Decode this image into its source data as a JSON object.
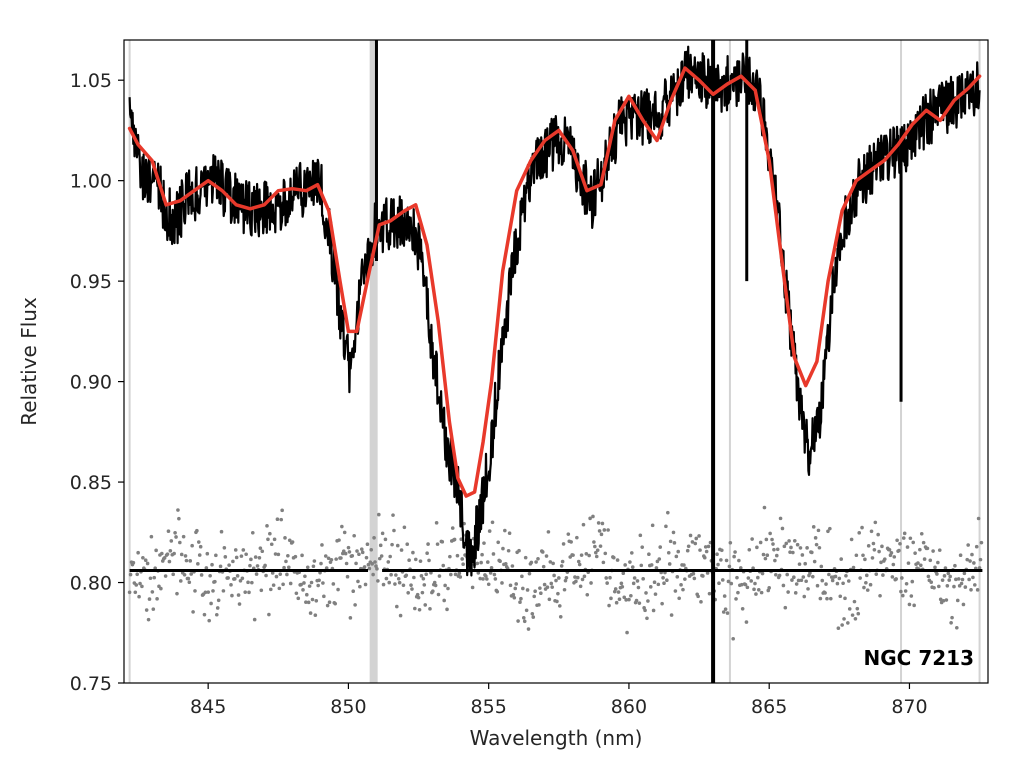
{
  "chart_data": {
    "type": "line",
    "title": "",
    "xlabel": "Wavelength (nm)",
    "ylabel": "Relative Flux",
    "xlim": [
      842.0,
      872.8
    ],
    "ylim": [
      0.75,
      1.07
    ],
    "xticks": [
      845,
      850,
      855,
      860,
      865,
      870
    ],
    "yticks": [
      0.75,
      0.8,
      0.85,
      0.9,
      0.95,
      1.0,
      1.05
    ],
    "xtick_labels": [
      "845",
      "850",
      "855",
      "860",
      "865",
      "870"
    ],
    "ytick_labels": [
      "0.75",
      "0.80",
      "0.85",
      "0.90",
      "0.95",
      "1.00",
      "1.05"
    ],
    "annotation": "NGC 7213",
    "grid": false,
    "legend": "none",
    "colors": {
      "observed": "#000000",
      "model": "#e8392b",
      "residuals": "#808080",
      "masked": "#d3d3d3",
      "axes": "#000000"
    },
    "masked_regions": [
      {
        "x": 842.2,
        "weight": "thin"
      },
      {
        "x": 850.9,
        "weight": "thick"
      },
      {
        "x": 863.6,
        "weight": "thin"
      },
      {
        "x": 869.7,
        "weight": "thin"
      },
      {
        "x": 872.5,
        "weight": "thin"
      }
    ],
    "series": [
      {
        "kind": "observed",
        "x": [
          842.2,
          842.4,
          842.6,
          842.9,
          843.2,
          843.5,
          843.8,
          844.2,
          844.6,
          845.0,
          845.4,
          845.8,
          846.2,
          846.6,
          847.0,
          847.4,
          847.8,
          848.2,
          848.6,
          849.0,
          849.3,
          849.6,
          849.9,
          850.1,
          850.4,
          850.7,
          851.0,
          851.4,
          851.8,
          852.2,
          852.6,
          852.9,
          853.2,
          853.5,
          853.8,
          854.0,
          854.2,
          854.4,
          854.6,
          854.9,
          855.2,
          855.5,
          855.9,
          856.3,
          856.8,
          857.3,
          857.8,
          858.3,
          858.7,
          859.2,
          859.7,
          860.2,
          860.7,
          861.2,
          861.7,
          862.2,
          862.7,
          863.2,
          863.7,
          864.2,
          864.7,
          865.1,
          865.5,
          865.8,
          866.1,
          866.4,
          866.7,
          867.0,
          867.3,
          867.7,
          868.1,
          868.6,
          869.1,
          869.6,
          870.1,
          870.6,
          871.1,
          871.6,
          872.0,
          872.5
        ],
        "y": [
          1.035,
          1.02,
          1.005,
          1.0,
          0.998,
          0.985,
          0.98,
          0.99,
          0.995,
          1.0,
          0.998,
          0.992,
          0.988,
          0.985,
          0.986,
          0.988,
          0.99,
          0.996,
          0.995,
          0.998,
          0.975,
          0.945,
          0.915,
          0.905,
          0.94,
          0.965,
          0.978,
          0.978,
          0.978,
          0.983,
          0.96,
          0.928,
          0.895,
          0.87,
          0.855,
          0.838,
          0.818,
          0.813,
          0.828,
          0.85,
          0.882,
          0.92,
          0.96,
          0.992,
          1.01,
          1.018,
          1.02,
          1.0,
          0.99,
          1.01,
          1.028,
          1.03,
          1.032,
          1.035,
          1.045,
          1.055,
          1.05,
          1.045,
          1.05,
          1.052,
          1.04,
          1.005,
          0.96,
          0.92,
          0.89,
          0.865,
          0.875,
          0.905,
          0.95,
          0.98,
          0.995,
          1.005,
          1.012,
          1.015,
          1.02,
          1.03,
          1.035,
          1.04,
          1.042,
          1.048
        ]
      },
      {
        "kind": "model",
        "x": [
          842.2,
          842.5,
          843.0,
          843.5,
          844.0,
          844.5,
          845.0,
          845.5,
          846.0,
          846.5,
          847.0,
          847.5,
          848.0,
          848.5,
          848.9,
          849.3,
          849.7,
          850.0,
          850.3,
          850.7,
          851.1,
          851.5,
          852.0,
          852.4,
          852.8,
          853.2,
          853.6,
          853.9,
          854.2,
          854.5,
          854.8,
          855.1,
          855.5,
          856.0,
          856.5,
          857.0,
          857.5,
          858.0,
          858.5,
          859.0,
          859.5,
          860.0,
          860.5,
          861.0,
          861.5,
          862.0,
          862.5,
          863.0,
          863.5,
          864.0,
          864.5,
          865.0,
          865.5,
          865.9,
          866.3,
          866.7,
          867.1,
          867.6,
          868.1,
          868.6,
          869.1,
          869.6,
          870.1,
          870.6,
          871.1,
          871.6,
          872.1,
          872.5
        ],
        "y": [
          1.026,
          1.018,
          1.01,
          0.988,
          0.99,
          0.995,
          1.0,
          0.995,
          0.988,
          0.986,
          0.988,
          0.995,
          0.996,
          0.995,
          0.998,
          0.985,
          0.95,
          0.925,
          0.925,
          0.952,
          0.978,
          0.98,
          0.985,
          0.988,
          0.968,
          0.93,
          0.88,
          0.852,
          0.843,
          0.845,
          0.87,
          0.9,
          0.955,
          0.995,
          1.01,
          1.02,
          1.025,
          1.015,
          0.995,
          0.998,
          1.03,
          1.042,
          1.03,
          1.02,
          1.04,
          1.056,
          1.05,
          1.043,
          1.048,
          1.052,
          1.045,
          1.01,
          0.955,
          0.912,
          0.898,
          0.91,
          0.95,
          0.985,
          1.0,
          1.005,
          1.01,
          1.018,
          1.028,
          1.035,
          1.03,
          1.04,
          1.046,
          1.052
        ]
      }
    ],
    "residual_baseline": 0.806,
    "residual_scatter_range": [
      0.77,
      0.845
    ],
    "telluric_spike_x": [
      851.0,
      863.0,
      864.2,
      869.7
    ]
  }
}
